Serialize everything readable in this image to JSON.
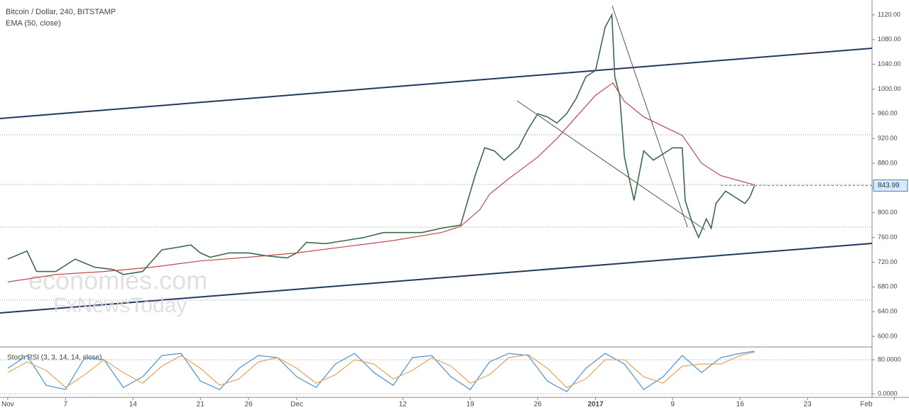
{
  "chart_data": [
    {
      "type": "line",
      "title": "Bitcoin / Dollar, 240, BITSTAMP",
      "annotations": [
        "economies.com",
        "FxNewsToday"
      ],
      "last_value": 843.99,
      "xlim": [
        -0.8,
        89.7
      ],
      "xticks": [
        {
          "value": 0,
          "label": "Nov"
        },
        {
          "value": 6,
          "label": "7"
        },
        {
          "value": 13,
          "label": "14"
        },
        {
          "value": 20,
          "label": "21"
        },
        {
          "value": 25,
          "label": "26"
        },
        {
          "value": 30,
          "label": "Dec"
        },
        {
          "value": 41,
          "label": "12"
        },
        {
          "value": 48,
          "label": "19"
        },
        {
          "value": 55,
          "label": "26"
        },
        {
          "value": 61,
          "label": "2017"
        },
        {
          "value": 69,
          "label": "9"
        },
        {
          "value": 76,
          "label": "16"
        },
        {
          "value": 83,
          "label": "23"
        },
        {
          "value": 92,
          "label": "Feb"
        }
      ],
      "ylim": [
        584,
        1144
      ],
      "yticks": [
        {
          "value": 600,
          "label": "600.00"
        },
        {
          "value": 640,
          "label": "640.00"
        },
        {
          "value": 680,
          "label": "680.00"
        },
        {
          "value": 720,
          "label": "720.00"
        },
        {
          "value": 760,
          "label": "760.00"
        },
        {
          "value": 800,
          "label": "800.00"
        },
        {
          "value": 840,
          "label": "840.00"
        },
        {
          "value": 880,
          "label": "880.00"
        },
        {
          "value": 920,
          "label": "920.00"
        },
        {
          "value": 960,
          "label": "960.00"
        },
        {
          "value": 1000,
          "label": "1000.00"
        },
        {
          "value": 1040,
          "label": "1040.00"
        },
        {
          "value": 1080,
          "label": "1080.00"
        },
        {
          "value": 1120,
          "label": "1120.00"
        }
      ],
      "grid": false,
      "series": [
        {
          "color": "#3d6b47",
          "x": [
            0,
            2,
            3,
            5,
            7,
            9,
            11,
            12,
            14,
            16,
            18,
            19,
            20,
            21,
            23,
            25,
            27,
            29,
            30,
            31,
            33,
            35,
            37,
            39,
            41,
            43,
            45,
            47,
            48.5,
            49.5,
            50.5,
            51.5,
            53,
            54,
            55,
            56,
            57,
            58,
            59,
            60,
            61,
            62,
            62.7,
            63,
            63.5,
            64,
            65,
            66,
            67,
            68,
            69,
            70,
            70.3,
            71,
            71.7,
            72.5,
            73,
            73.5,
            74.5,
            75.5,
            76.5,
            77,
            77.5
          ],
          "values": [
            725,
            738,
            705,
            705,
            725,
            712,
            708,
            700,
            705,
            740,
            745,
            748,
            735,
            728,
            735,
            735,
            730,
            727,
            735,
            752,
            750,
            755,
            760,
            768,
            768,
            768,
            775,
            780,
            860,
            905,
            900,
            885,
            905,
            935,
            960,
            955,
            945,
            960,
            985,
            1020,
            1030,
            1100,
            1120,
            1020,
            990,
            890,
            820,
            900,
            885,
            895,
            905,
            905,
            820,
            785,
            760,
            790,
            775,
            815,
            835,
            825,
            815,
            825,
            843.99
          ]
        },
        {
          "name": "EMA (50, close)",
          "color": "#c0474f",
          "x": [
            0,
            5,
            10,
            15,
            20,
            25,
            30,
            35,
            40,
            45,
            47,
            49,
            50,
            52,
            55,
            57,
            59,
            61,
            62.8,
            64,
            66,
            68,
            70,
            72,
            74,
            77.5
          ],
          "values": [
            688,
            700,
            705,
            712,
            722,
            728,
            735,
            745,
            755,
            768,
            778,
            805,
            830,
            855,
            890,
            920,
            955,
            990,
            1010,
            980,
            955,
            940,
            925,
            880,
            860,
            845
          ]
        }
      ]
    },
    {
      "type": "line",
      "title": "Stoch RSI (3, 3, 14, 14, close)",
      "ylim": [
        -8.3,
        108.3
      ],
      "yticks": [
        {
          "value": 0,
          "label": "0.0000"
        },
        {
          "value": 80,
          "label": "80.0000"
        }
      ],
      "grid": true,
      "x": [
        0,
        2,
        4,
        6,
        8,
        10,
        12,
        14,
        16,
        18,
        20,
        22,
        24,
        26,
        28,
        30,
        32,
        34,
        36,
        38,
        40,
        42,
        44,
        46,
        48,
        50,
        52,
        54,
        56,
        58,
        60,
        62,
        64,
        66,
        68,
        70,
        72,
        74,
        76,
        77.5
      ],
      "series": [
        {
          "color": "#4a90d9",
          "values": [
            60,
            90,
            20,
            10,
            85,
            80,
            15,
            40,
            90,
            95,
            30,
            10,
            60,
            90,
            85,
            40,
            15,
            70,
            95,
            50,
            20,
            85,
            90,
            40,
            10,
            75,
            95,
            90,
            30,
            5,
            60,
            95,
            70,
            10,
            40,
            90,
            50,
            85,
            95,
            100
          ]
        },
        {
          "color": "#e8a35a",
          "values": [
            50,
            75,
            55,
            15,
            45,
            80,
            50,
            25,
            65,
            90,
            60,
            20,
            35,
            75,
            85,
            60,
            25,
            45,
            80,
            70,
            35,
            55,
            85,
            65,
            25,
            45,
            85,
            92,
            60,
            15,
            35,
            80,
            80,
            40,
            25,
            65,
            70,
            70,
            90,
            98
          ]
        }
      ]
    }
  ]
}
